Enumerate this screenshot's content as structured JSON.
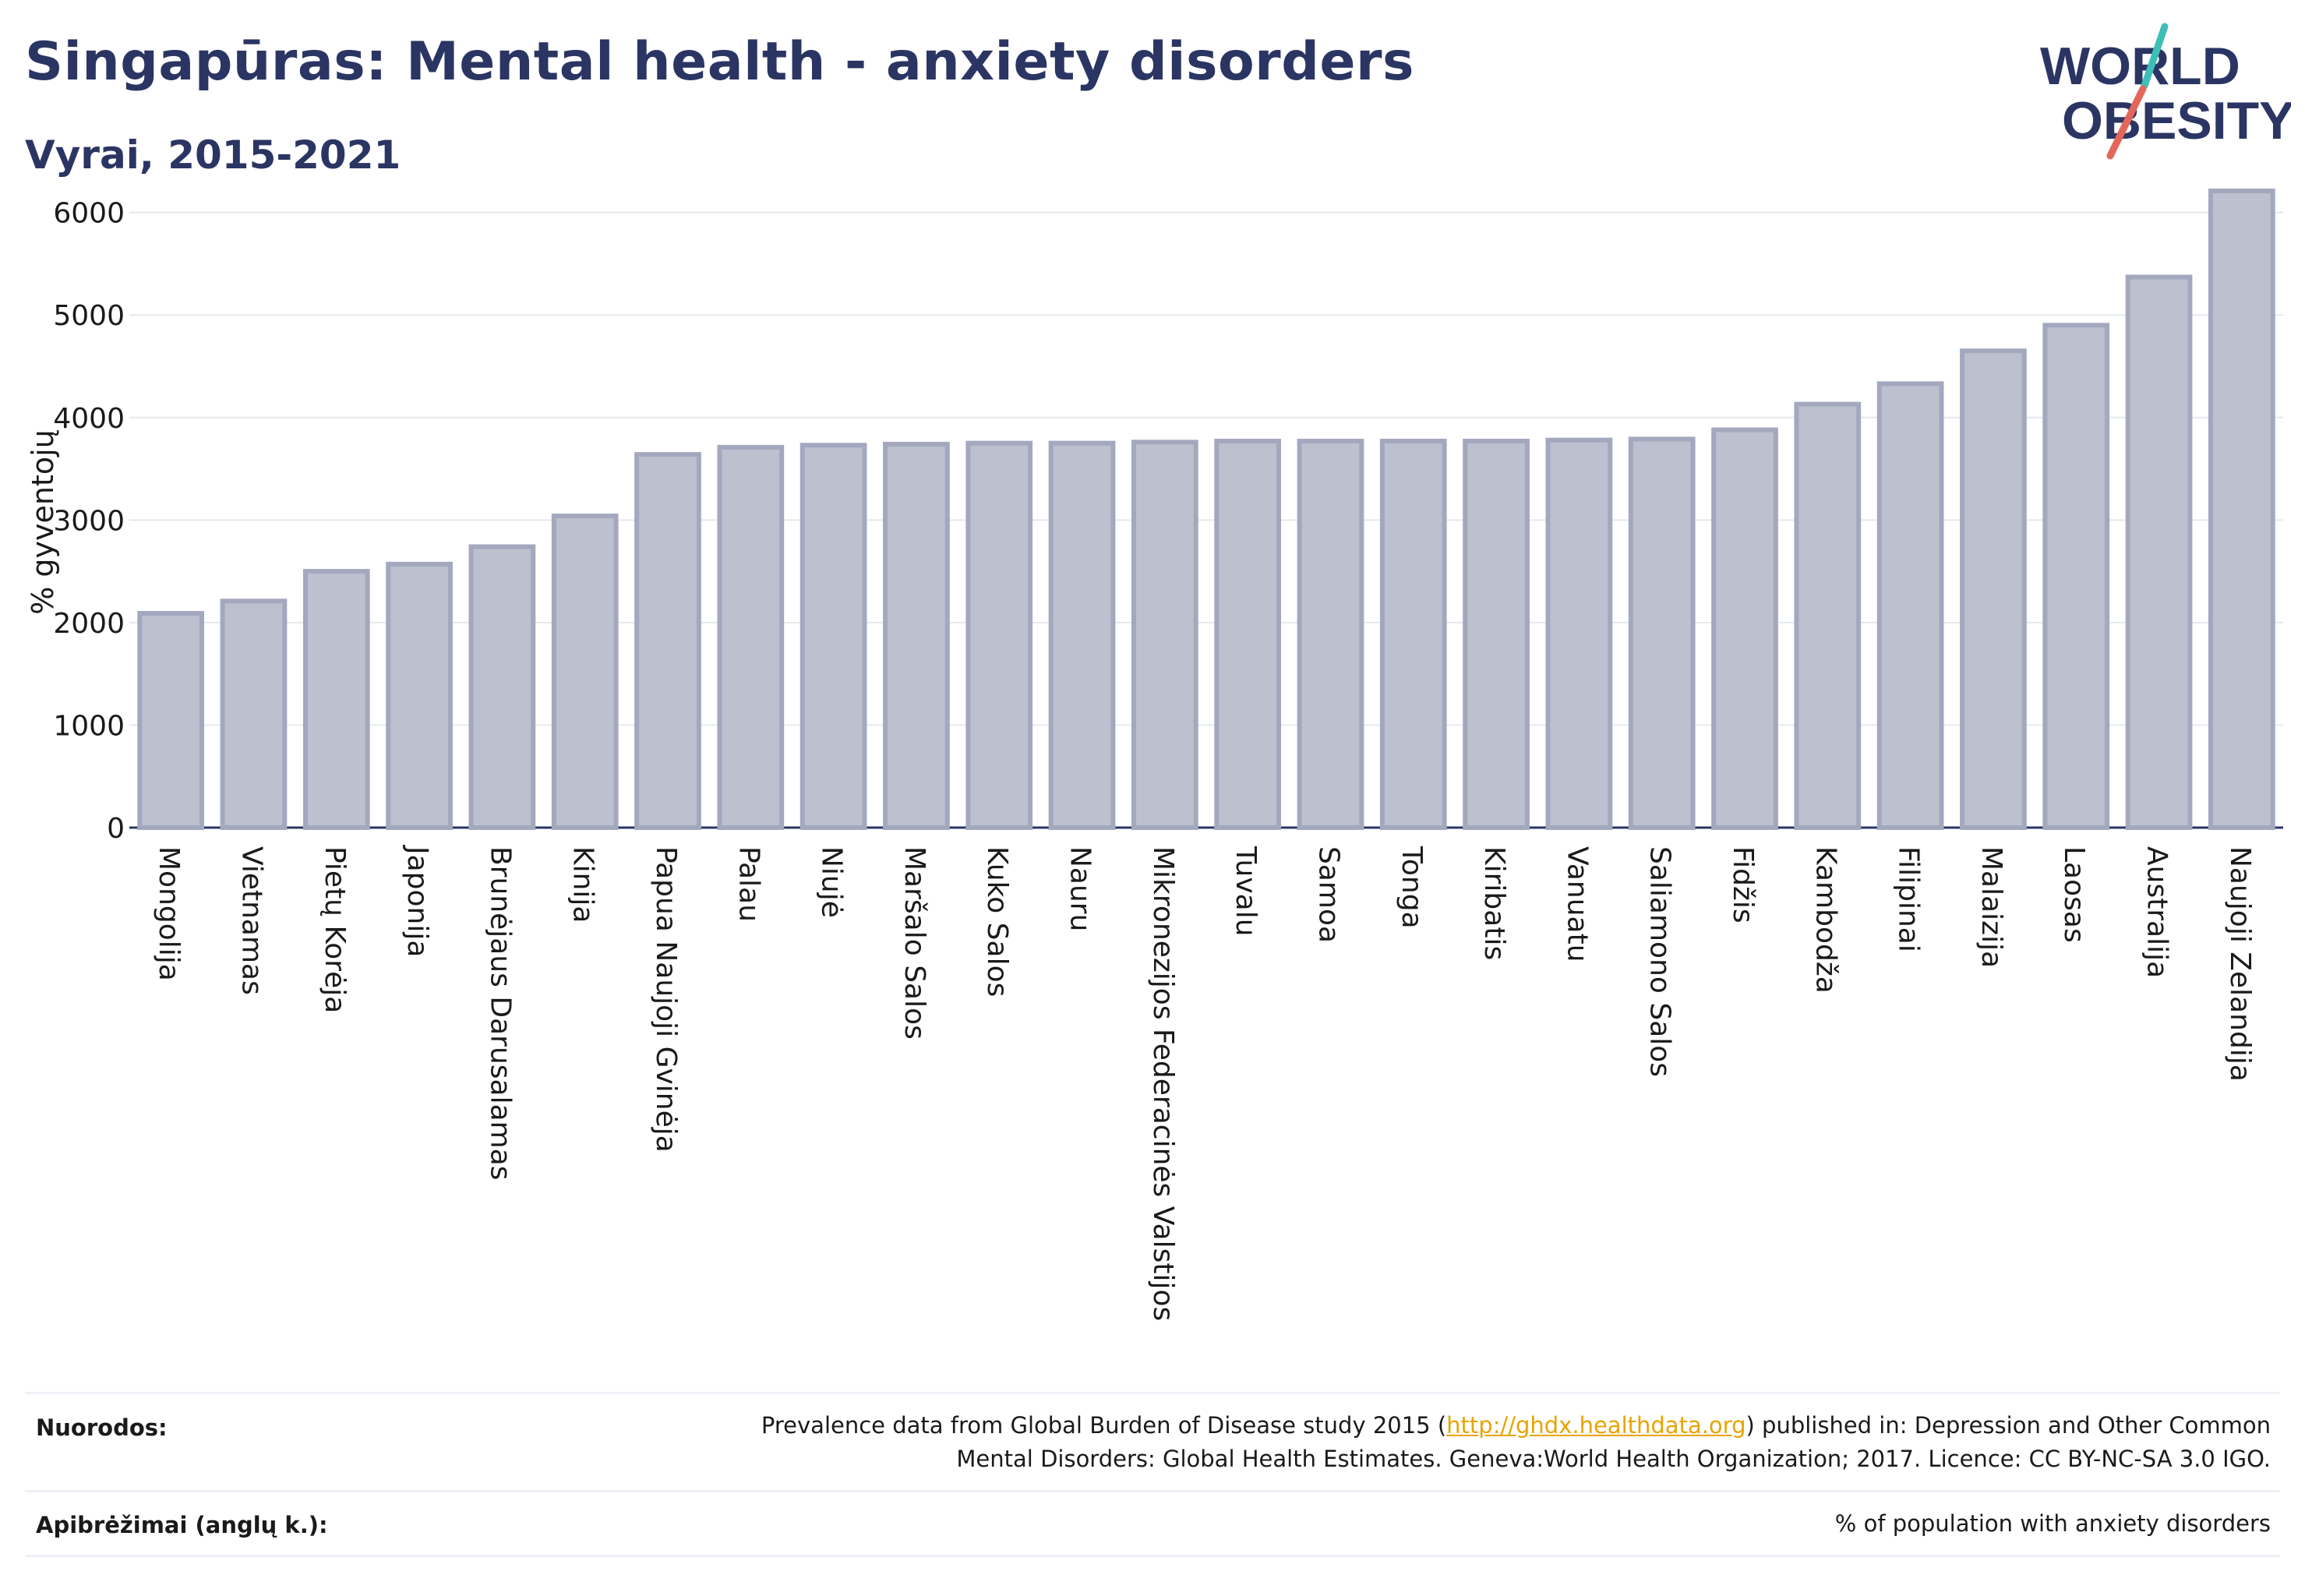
{
  "header": {
    "title": "Singapūras: Mental health - anxiety disorders",
    "subtitle": "Vyrai, 2015-2021"
  },
  "logo": {
    "line1": "WORLD",
    "line2": "OBESITY",
    "accent_teal": "#3dbfb8",
    "accent_red": "#e4665a",
    "text_color": "#2b3563"
  },
  "chart_data": {
    "type": "bar",
    "ylabel": "% gyventojų",
    "ylim": [
      0,
      6400
    ],
    "yticks": [
      0,
      1000,
      2000,
      3000,
      4000,
      5000,
      6000
    ],
    "grid": true,
    "bar_color": "#bcc0cf",
    "bar_edge_color": "#a3a8bf",
    "categories": [
      "Mongolija",
      "Vietnamas",
      "Pietų Korėja",
      "Japonija",
      "Brunėjaus Darusalamas",
      "Kinija",
      "Papua Naujoji Gvinėja",
      "Palau",
      "Niujė",
      "Maršalo Salos",
      "Kuko Salos",
      "Nauru",
      "Mikronezijos Federacinės Valstijos",
      "Tuvalu",
      "Samoa",
      "Tonga",
      "Kiribatis",
      "Vanuatu",
      "Saliamono Salos",
      "Fidžis",
      "Kambodža",
      "Filipinai",
      "Malaizija",
      "Laosas",
      "Australija",
      "Naujoji Zelandija"
    ],
    "values": [
      2090,
      2210,
      2500,
      2570,
      2740,
      3040,
      3640,
      3710,
      3730,
      3740,
      3750,
      3750,
      3760,
      3770,
      3770,
      3770,
      3770,
      3780,
      3790,
      3880,
      4130,
      4330,
      4650,
      4900,
      5370,
      6210
    ]
  },
  "footer": {
    "refs_label": "Nuorodos:",
    "refs_text_before": "Prevalence data from Global Burden of Disease study 2015 (",
    "refs_link": "http://ghdx.healthdata.org",
    "refs_text_after": ") published in: Depression and Other Common",
    "refs_line2": "Mental Disorders: Global Health Estimates. Geneva:World Health Organization; 2017. Licence: CC BY-NC-SA 3.0 IGO.",
    "defs_label": "Apibrėžimai (anglų k.):",
    "defs_text": "% of population with anxiety disorders"
  }
}
